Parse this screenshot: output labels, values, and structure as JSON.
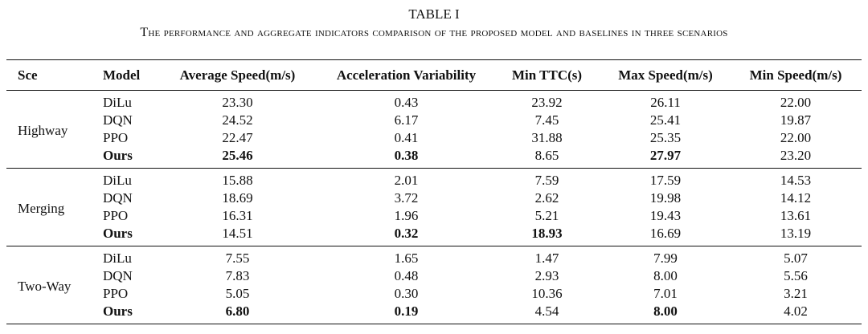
{
  "caption": {
    "label": "TABLE I",
    "title": "The performance and aggregate indicators comparison of the proposed model and baselines in three scenarios"
  },
  "table": {
    "header": [
      "Sce",
      "Model",
      "Average Speed(m/s)",
      "Acceleration Variability",
      "Min TTC(s)",
      "Max Speed(m/s)",
      "Min Speed(m/s)"
    ],
    "groups": [
      {
        "scenario": "Highway",
        "rows": [
          {
            "cells": [
              "DiLu",
              "23.30",
              "0.43",
              "23.92",
              "26.11",
              "22.00"
            ],
            "bold": []
          },
          {
            "cells": [
              "DQN",
              "24.52",
              "6.17",
              "7.45",
              "25.41",
              "19.87"
            ],
            "bold": []
          },
          {
            "cells": [
              "PPO",
              "22.47",
              "0.41",
              "31.88",
              "25.35",
              "22.00"
            ],
            "bold": []
          },
          {
            "cells": [
              "Ours",
              "25.46",
              "0.38",
              "8.65",
              "27.97",
              "23.20"
            ],
            "bold": [
              0,
              1,
              2,
              4
            ]
          }
        ]
      },
      {
        "scenario": "Merging",
        "rows": [
          {
            "cells": [
              "DiLu",
              "15.88",
              "2.01",
              "7.59",
              "17.59",
              "14.53"
            ],
            "bold": []
          },
          {
            "cells": [
              "DQN",
              "18.69",
              "3.72",
              "2.62",
              "19.98",
              "14.12"
            ],
            "bold": []
          },
          {
            "cells": [
              "PPO",
              "16.31",
              "1.96",
              "5.21",
              "19.43",
              "13.61"
            ],
            "bold": []
          },
          {
            "cells": [
              "Ours",
              "14.51",
              "0.32",
              "18.93",
              "16.69",
              "13.19"
            ],
            "bold": [
              0,
              2,
              3
            ]
          }
        ]
      },
      {
        "scenario": "Two-Way",
        "rows": [
          {
            "cells": [
              "DiLu",
              "7.55",
              "1.65",
              "1.47",
              "7.99",
              "5.07"
            ],
            "bold": []
          },
          {
            "cells": [
              "DQN",
              "7.83",
              "0.48",
              "2.93",
              "8.00",
              "5.56"
            ],
            "bold": []
          },
          {
            "cells": [
              "PPO",
              "5.05",
              "0.30",
              "10.36",
              "7.01",
              "3.21"
            ],
            "bold": []
          },
          {
            "cells": [
              "Ours",
              "6.80",
              "0.19",
              "4.54",
              "8.00",
              "4.02"
            ],
            "bold": [
              0,
              1,
              2,
              4
            ]
          }
        ]
      }
    ]
  }
}
